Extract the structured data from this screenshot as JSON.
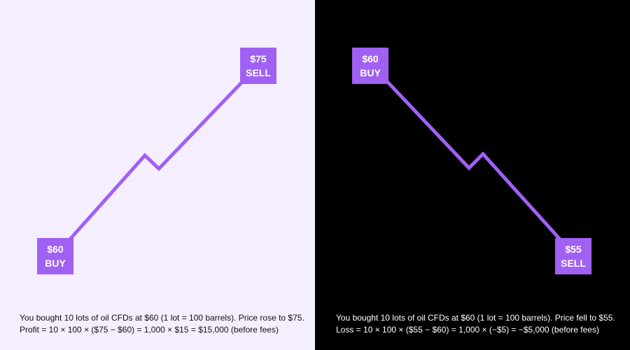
{
  "colors": {
    "accent": "#A061F2",
    "left_bg": "#F5EEFF",
    "right_bg": "#000000"
  },
  "profit_panel": {
    "entry": {
      "price": "$60",
      "action": "BUY"
    },
    "exit": {
      "price": "$75",
      "action": "SELL"
    },
    "caption_line1": "You bought 10 lots of oil CFDs at $60 (1 lot = 100 barrels). Price rose to $75.",
    "caption_line2": "Profit = 10 × 100 × ($75 − $60) = 1,000 × $15 = $15,000 (before fees)"
  },
  "loss_panel": {
    "entry": {
      "price": "$60",
      "action": "BUY"
    },
    "exit": {
      "price": "$55",
      "action": "SELL"
    },
    "caption_line1": "You bought 10 lots of oil CFDs at $60 (1 lot = 100 barrels). Price fell to $55.",
    "caption_line2": "Loss = 10 × 100 × ($55 − $60) = 1,000 × (−$5) = −$5,000 (before fees)"
  }
}
